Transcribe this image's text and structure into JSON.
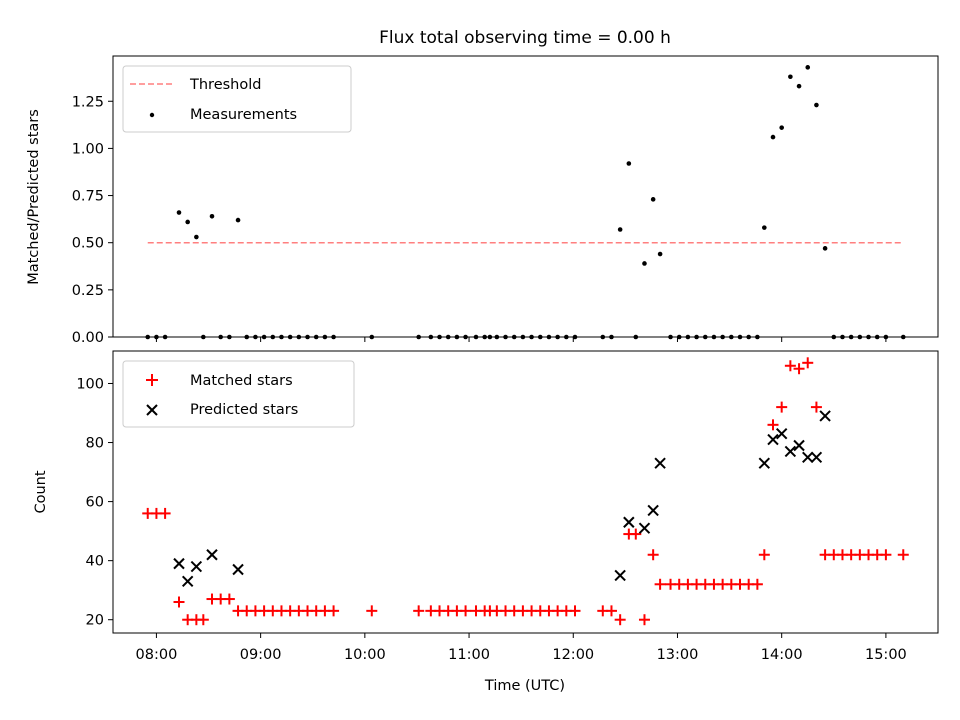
{
  "chart_data": [
    {
      "type": "scatter",
      "title": "Flux total observing time = 0.00 h",
      "xlabel": "",
      "ylabel": "Matched/Predicted stars",
      "x_axis": "time of day (UTC)",
      "xlim": [
        "07:35",
        "15:30"
      ],
      "ylim": [
        0,
        1.49
      ],
      "yticks": [
        0.0,
        0.25,
        0.5,
        0.75,
        1.0,
        1.25
      ],
      "ytick_labels": [
        "0.00",
        "0.25",
        "0.50",
        "0.75",
        "1.00",
        "1.25"
      ],
      "grid": false,
      "legend_position": "upper left",
      "series": [
        {
          "name": "Threshold",
          "kind": "dashed-line",
          "color": "#ff7f7f",
          "points": [
            {
              "x": "07:55",
              "y": 0.5
            },
            {
              "x": "15:10",
              "y": 0.5
            }
          ]
        },
        {
          "name": "Measurements",
          "kind": "dot",
          "color": "#000000",
          "points": [
            {
              "x": "07:55",
              "y": 0
            },
            {
              "x": "08:00",
              "y": 0
            },
            {
              "x": "08:05",
              "y": 0
            },
            {
              "x": "08:13",
              "y": 0.66
            },
            {
              "x": "08:18",
              "y": 0.61
            },
            {
              "x": "08:23",
              "y": 0.53
            },
            {
              "x": "08:27",
              "y": 0
            },
            {
              "x": "08:32",
              "y": 0.64
            },
            {
              "x": "08:37",
              "y": 0
            },
            {
              "x": "08:42",
              "y": 0
            },
            {
              "x": "08:47",
              "y": 0.62
            },
            {
              "x": "08:52",
              "y": 0
            },
            {
              "x": "08:57",
              "y": 0
            },
            {
              "x": "09:02",
              "y": 0
            },
            {
              "x": "09:07",
              "y": 0
            },
            {
              "x": "09:12",
              "y": 0
            },
            {
              "x": "09:17",
              "y": 0
            },
            {
              "x": "09:22",
              "y": 0
            },
            {
              "x": "09:27",
              "y": 0
            },
            {
              "x": "09:32",
              "y": 0
            },
            {
              "x": "09:37",
              "y": 0
            },
            {
              "x": "09:42",
              "y": 0
            },
            {
              "x": "10:04",
              "y": 0
            },
            {
              "x": "10:31",
              "y": 0
            },
            {
              "x": "10:38",
              "y": 0
            },
            {
              "x": "10:43",
              "y": 0
            },
            {
              "x": "10:48",
              "y": 0
            },
            {
              "x": "10:53",
              "y": 0
            },
            {
              "x": "10:58",
              "y": 0
            },
            {
              "x": "11:04",
              "y": 0
            },
            {
              "x": "11:09",
              "y": 0
            },
            {
              "x": "11:12",
              "y": 0
            },
            {
              "x": "11:16",
              "y": 0
            },
            {
              "x": "11:21",
              "y": 0
            },
            {
              "x": "11:26",
              "y": 0
            },
            {
              "x": "11:31",
              "y": 0
            },
            {
              "x": "11:36",
              "y": 0
            },
            {
              "x": "11:41",
              "y": 0
            },
            {
              "x": "11:46",
              "y": 0
            },
            {
              "x": "11:51",
              "y": 0
            },
            {
              "x": "11:56",
              "y": 0
            },
            {
              "x": "12:01",
              "y": 0
            },
            {
              "x": "12:17",
              "y": 0
            },
            {
              "x": "12:22",
              "y": 0
            },
            {
              "x": "12:27",
              "y": 0.57
            },
            {
              "x": "12:32",
              "y": 0.92
            },
            {
              "x": "12:36",
              "y": 0
            },
            {
              "x": "12:41",
              "y": 0.39
            },
            {
              "x": "12:46",
              "y": 0.73
            },
            {
              "x": "12:50",
              "y": 0.44
            },
            {
              "x": "12:56",
              "y": 0
            },
            {
              "x": "13:01",
              "y": 0
            },
            {
              "x": "13:06",
              "y": 0
            },
            {
              "x": "13:11",
              "y": 0
            },
            {
              "x": "13:16",
              "y": 0
            },
            {
              "x": "13:21",
              "y": 0
            },
            {
              "x": "13:26",
              "y": 0
            },
            {
              "x": "13:31",
              "y": 0
            },
            {
              "x": "13:36",
              "y": 0
            },
            {
              "x": "13:41",
              "y": 0
            },
            {
              "x": "13:46",
              "y": 0
            },
            {
              "x": "13:50",
              "y": 0.58
            },
            {
              "x": "13:55",
              "y": 1.06
            },
            {
              "x": "14:00",
              "y": 1.11
            },
            {
              "x": "14:05",
              "y": 1.38
            },
            {
              "x": "14:10",
              "y": 1.33
            },
            {
              "x": "14:15",
              "y": 1.43
            },
            {
              "x": "14:20",
              "y": 1.23
            },
            {
              "x": "14:25",
              "y": 0.47
            },
            {
              "x": "14:30",
              "y": 0
            },
            {
              "x": "14:35",
              "y": 0
            },
            {
              "x": "14:40",
              "y": 0
            },
            {
              "x": "14:45",
              "y": 0
            },
            {
              "x": "14:50",
              "y": 0
            },
            {
              "x": "14:55",
              "y": 0
            },
            {
              "x": "15:00",
              "y": 0
            },
            {
              "x": "15:10",
              "y": 0
            }
          ]
        }
      ]
    },
    {
      "type": "scatter",
      "title": "",
      "xlabel": "Time (UTC)",
      "ylabel": "Count",
      "x_axis": "time of day (UTC)",
      "xlim": [
        "07:35",
        "15:30"
      ],
      "xticks": [
        "08:00",
        "09:00",
        "10:00",
        "11:00",
        "12:00",
        "13:00",
        "14:00",
        "15:00"
      ],
      "ylim": [
        15.5,
        111
      ],
      "yticks": [
        20,
        40,
        60,
        80,
        100
      ],
      "grid": false,
      "legend_position": "upper left",
      "series": [
        {
          "name": "Matched stars",
          "kind": "plus",
          "color": "#ff0000",
          "points": [
            {
              "x": "07:55",
              "y": 56
            },
            {
              "x": "08:00",
              "y": 56
            },
            {
              "x": "08:05",
              "y": 56
            },
            {
              "x": "08:13",
              "y": 26
            },
            {
              "x": "08:18",
              "y": 20
            },
            {
              "x": "08:23",
              "y": 20
            },
            {
              "x": "08:27",
              "y": 20
            },
            {
              "x": "08:32",
              "y": 27
            },
            {
              "x": "08:37",
              "y": 27
            },
            {
              "x": "08:42",
              "y": 27
            },
            {
              "x": "08:47",
              "y": 23
            },
            {
              "x": "08:52",
              "y": 23
            },
            {
              "x": "08:57",
              "y": 23
            },
            {
              "x": "09:02",
              "y": 23
            },
            {
              "x": "09:07",
              "y": 23
            },
            {
              "x": "09:12",
              "y": 23
            },
            {
              "x": "09:17",
              "y": 23
            },
            {
              "x": "09:22",
              "y": 23
            },
            {
              "x": "09:27",
              "y": 23
            },
            {
              "x": "09:32",
              "y": 23
            },
            {
              "x": "09:37",
              "y": 23
            },
            {
              "x": "09:42",
              "y": 23
            },
            {
              "x": "10:04",
              "y": 23
            },
            {
              "x": "10:31",
              "y": 23
            },
            {
              "x": "10:38",
              "y": 23
            },
            {
              "x": "10:43",
              "y": 23
            },
            {
              "x": "10:48",
              "y": 23
            },
            {
              "x": "10:53",
              "y": 23
            },
            {
              "x": "10:58",
              "y": 23
            },
            {
              "x": "11:04",
              "y": 23
            },
            {
              "x": "11:09",
              "y": 23
            },
            {
              "x": "11:12",
              "y": 23
            },
            {
              "x": "11:16",
              "y": 23
            },
            {
              "x": "11:21",
              "y": 23
            },
            {
              "x": "11:26",
              "y": 23
            },
            {
              "x": "11:31",
              "y": 23
            },
            {
              "x": "11:36",
              "y": 23
            },
            {
              "x": "11:41",
              "y": 23
            },
            {
              "x": "11:46",
              "y": 23
            },
            {
              "x": "11:51",
              "y": 23
            },
            {
              "x": "11:56",
              "y": 23
            },
            {
              "x": "12:01",
              "y": 23
            },
            {
              "x": "12:17",
              "y": 23
            },
            {
              "x": "12:22",
              "y": 23
            },
            {
              "x": "12:27",
              "y": 20
            },
            {
              "x": "12:32",
              "y": 49
            },
            {
              "x": "12:36",
              "y": 49
            },
            {
              "x": "12:41",
              "y": 20
            },
            {
              "x": "12:46",
              "y": 42
            },
            {
              "x": "12:50",
              "y": 32
            },
            {
              "x": "12:56",
              "y": 32
            },
            {
              "x": "13:01",
              "y": 32
            },
            {
              "x": "13:06",
              "y": 32
            },
            {
              "x": "13:11",
              "y": 32
            },
            {
              "x": "13:16",
              "y": 32
            },
            {
              "x": "13:21",
              "y": 32
            },
            {
              "x": "13:26",
              "y": 32
            },
            {
              "x": "13:31",
              "y": 32
            },
            {
              "x": "13:36",
              "y": 32
            },
            {
              "x": "13:41",
              "y": 32
            },
            {
              "x": "13:46",
              "y": 32
            },
            {
              "x": "13:50",
              "y": 42
            },
            {
              "x": "13:55",
              "y": 86
            },
            {
              "x": "14:00",
              "y": 92
            },
            {
              "x": "14:05",
              "y": 106
            },
            {
              "x": "14:10",
              "y": 105
            },
            {
              "x": "14:15",
              "y": 107
            },
            {
              "x": "14:20",
              "y": 92
            },
            {
              "x": "14:25",
              "y": 42
            },
            {
              "x": "14:30",
              "y": 42
            },
            {
              "x": "14:35",
              "y": 42
            },
            {
              "x": "14:40",
              "y": 42
            },
            {
              "x": "14:45",
              "y": 42
            },
            {
              "x": "14:50",
              "y": 42
            },
            {
              "x": "14:55",
              "y": 42
            },
            {
              "x": "15:00",
              "y": 42
            },
            {
              "x": "15:10",
              "y": 42
            }
          ]
        },
        {
          "name": "Predicted stars",
          "kind": "x",
          "color": "#000000",
          "points": [
            {
              "x": "08:13",
              "y": 39
            },
            {
              "x": "08:18",
              "y": 33
            },
            {
              "x": "08:23",
              "y": 38
            },
            {
              "x": "08:32",
              "y": 42
            },
            {
              "x": "08:47",
              "y": 37
            },
            {
              "x": "12:27",
              "y": 35
            },
            {
              "x": "12:32",
              "y": 53
            },
            {
              "x": "12:41",
              "y": 51
            },
            {
              "x": "12:46",
              "y": 57
            },
            {
              "x": "12:50",
              "y": 73
            },
            {
              "x": "13:50",
              "y": 73
            },
            {
              "x": "13:55",
              "y": 81
            },
            {
              "x": "14:00",
              "y": 83
            },
            {
              "x": "14:05",
              "y": 77
            },
            {
              "x": "14:10",
              "y": 79
            },
            {
              "x": "14:15",
              "y": 75
            },
            {
              "x": "14:20",
              "y": 75
            },
            {
              "x": "14:25",
              "y": 89
            }
          ]
        }
      ]
    }
  ]
}
